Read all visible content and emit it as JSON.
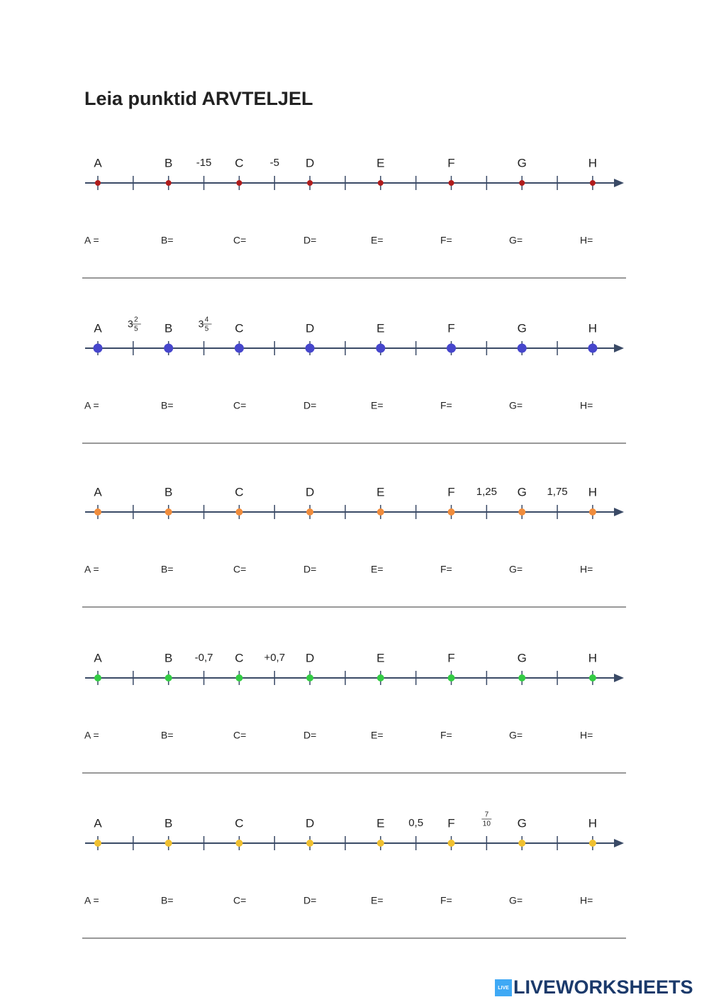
{
  "title": "Leia punktid ARVTELJEL",
  "rows": [
    {
      "color": "#b01c1c",
      "size": 4,
      "points": [
        "A",
        "B",
        "C",
        "D",
        "E",
        "F",
        "G",
        "H"
      ],
      "between": [
        null,
        "-15",
        "-5",
        null,
        null,
        null,
        null
      ],
      "answers": [
        "A =",
        "B=",
        "C=",
        "D=",
        "E=",
        "F=",
        "G=",
        "H="
      ]
    },
    {
      "color": "#4646cc",
      "size": 6.5,
      "points": [
        "A",
        "B",
        "C",
        "D",
        "E",
        "F",
        "G",
        "H"
      ],
      "between": [
        {
          "whole": "3",
          "num": "2",
          "den": "5"
        },
        {
          "whole": "3",
          "num": "4",
          "den": "5"
        },
        null,
        null,
        null,
        null,
        null
      ],
      "answers": [
        "A =",
        "B=",
        "C=",
        "D=",
        "E=",
        "F=",
        "G=",
        "H="
      ]
    },
    {
      "color": "#f08c3c",
      "size": 5,
      "points": [
        "A",
        "B",
        "C",
        "D",
        "E",
        "F",
        "G",
        "H"
      ],
      "between": [
        null,
        null,
        null,
        null,
        null,
        "1,25",
        "1,75"
      ],
      "answers": [
        "A =",
        "B=",
        "C=",
        "D=",
        "E=",
        "F=",
        "G=",
        "H="
      ]
    },
    {
      "color": "#33cc44",
      "size": 5,
      "points": [
        "A",
        "B",
        "C",
        "D",
        "E",
        "F",
        "G",
        "H"
      ],
      "between": [
        null,
        "-0,7",
        "+0,7",
        null,
        null,
        null,
        null
      ],
      "answers": [
        "A =",
        "B=",
        "C=",
        "D=",
        "E=",
        "F=",
        "G=",
        "H="
      ]
    },
    {
      "color": "#f0c030",
      "size": 5,
      "points": [
        "A",
        "B",
        "C",
        "D",
        "E",
        "F",
        "G",
        "H"
      ],
      "between": [
        null,
        null,
        null,
        null,
        "0,5",
        {
          "num": "7",
          "den": "10"
        },
        null
      ],
      "answers": [
        "A =",
        "B=",
        "C=",
        "D=",
        "E=",
        "F=",
        "G=",
        "H="
      ]
    }
  ],
  "footer": {
    "badge": "LIVE",
    "brand": "LIVEWORKSHEETS"
  }
}
